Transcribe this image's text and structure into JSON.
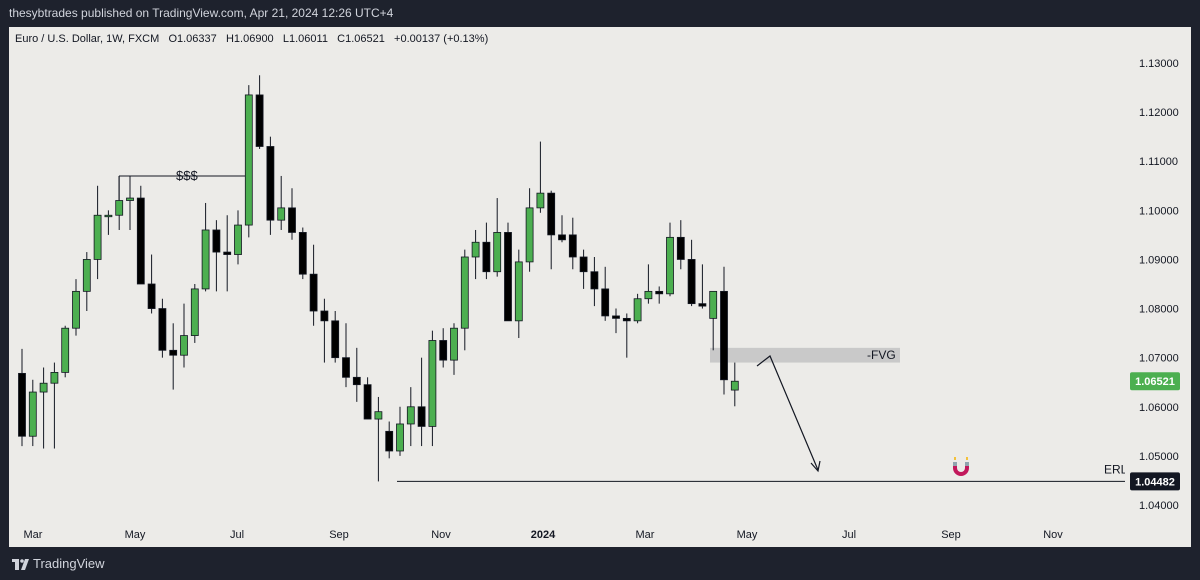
{
  "header": {
    "publisher_text": "thesybtrades published on TradingView.com, Apr 21, 2024 12:26 UTC+4"
  },
  "symbol_info": {
    "name": "Euro / U.S. Dollar, 1W, FXCM",
    "open": "O1.06337",
    "high": "H1.06900",
    "low": "L1.06011",
    "close": "C1.06521",
    "change": "+0.00137 (+0.13%)"
  },
  "footer": {
    "brand": "TradingView"
  },
  "colors": {
    "up": "#4caf50",
    "down": "#000000",
    "background": "#ecebe8",
    "frame": "#1e222d",
    "fvg": "#c9c9c9"
  },
  "chart_data": {
    "type": "candlestick",
    "title": "Euro / U.S. Dollar, 1W, FXCM",
    "ylim": [
      1.0375,
      1.1325
    ],
    "y_ticks": [
      "1.13000",
      "1.12000",
      "1.11000",
      "1.10000",
      "1.09000",
      "1.08000",
      "1.07000",
      "1.06000",
      "1.05000",
      "1.04000"
    ],
    "x_ticks": [
      {
        "label": "Mar",
        "week": 1
      },
      {
        "label": "May",
        "week": 9.5
      },
      {
        "label": "Jul",
        "week": 18
      },
      {
        "label": "Sep",
        "week": 26.5
      },
      {
        "label": "Nov",
        "week": 35
      },
      {
        "label": "2024",
        "week": 43.5
      },
      {
        "label": "Mar",
        "week": 52
      },
      {
        "label": "May",
        "week": 60.5
      },
      {
        "label": "Jul",
        "week": 69
      },
      {
        "label": "Sep",
        "week": 77.5
      },
      {
        "label": "Nov",
        "week": 86
      }
    ],
    "x_domain": [
      -1,
      92
    ],
    "candles": [
      {
        "o": 1.0668,
        "h": 1.0718,
        "l": 1.052,
        "c": 1.054
      },
      {
        "o": 1.054,
        "h": 1.0655,
        "l": 1.052,
        "c": 1.063
      },
      {
        "o": 1.063,
        "h": 1.068,
        "l": 1.0515,
        "c": 1.0648
      },
      {
        "o": 1.0648,
        "h": 1.069,
        "l": 1.0515,
        "c": 1.067
      },
      {
        "o": 1.067,
        "h": 1.0765,
        "l": 1.066,
        "c": 1.076
      },
      {
        "o": 1.076,
        "h": 1.086,
        "l": 1.0745,
        "c": 1.0835
      },
      {
        "o": 1.0835,
        "h": 1.0915,
        "l": 1.0795,
        "c": 1.09
      },
      {
        "o": 1.09,
        "h": 1.105,
        "l": 1.086,
        "c": 1.099
      },
      {
        "o": 1.099,
        "h": 1.1,
        "l": 1.095,
        "c": 1.099
      },
      {
        "o": 1.099,
        "h": 1.107,
        "l": 1.096,
        "c": 1.102
      },
      {
        "o": 1.102,
        "h": 1.107,
        "l": 1.096,
        "c": 1.1025
      },
      {
        "o": 1.1025,
        "h": 1.105,
        "l": 1.085,
        "c": 1.085
      },
      {
        "o": 1.085,
        "h": 1.091,
        "l": 1.079,
        "c": 1.08
      },
      {
        "o": 1.08,
        "h": 1.082,
        "l": 1.07,
        "c": 1.0715
      },
      {
        "o": 1.0715,
        "h": 1.077,
        "l": 1.0635,
        "c": 1.0705
      },
      {
        "o": 1.0705,
        "h": 1.081,
        "l": 1.068,
        "c": 1.0745
      },
      {
        "o": 1.0745,
        "h": 1.085,
        "l": 1.073,
        "c": 1.084
      },
      {
        "o": 1.084,
        "h": 1.1015,
        "l": 1.0835,
        "c": 1.096
      },
      {
        "o": 1.096,
        "h": 1.098,
        "l": 1.0835,
        "c": 1.0915
      },
      {
        "o": 1.0915,
        "h": 1.099,
        "l": 1.0835,
        "c": 1.091
      },
      {
        "o": 1.091,
        "h": 1.1,
        "l": 1.089,
        "c": 1.097
      },
      {
        "o": 1.097,
        "h": 1.1255,
        "l": 1.0945,
        "c": 1.1235
      },
      {
        "o": 1.1235,
        "h": 1.1275,
        "l": 1.1125,
        "c": 1.113
      },
      {
        "o": 1.113,
        "h": 1.115,
        "l": 1.095,
        "c": 1.098
      },
      {
        "o": 1.098,
        "h": 1.107,
        "l": 1.096,
        "c": 1.1005
      },
      {
        "o": 1.1005,
        "h": 1.1045,
        "l": 1.094,
        "c": 1.0955
      },
      {
        "o": 1.0955,
        "h": 1.0965,
        "l": 1.086,
        "c": 1.087
      },
      {
        "o": 1.087,
        "h": 1.093,
        "l": 1.0765,
        "c": 1.0795
      },
      {
        "o": 1.0795,
        "h": 1.082,
        "l": 1.069,
        "c": 1.0775
      },
      {
        "o": 1.0775,
        "h": 1.0795,
        "l": 1.069,
        "c": 1.07
      },
      {
        "o": 1.07,
        "h": 1.077,
        "l": 1.064,
        "c": 1.066
      },
      {
        "o": 1.066,
        "h": 1.072,
        "l": 1.061,
        "c": 1.0645
      },
      {
        "o": 1.0645,
        "h": 1.066,
        "l": 1.0575,
        "c": 1.0575
      },
      {
        "o": 1.0575,
        "h": 1.062,
        "l": 1.0448,
        "c": 1.059
      },
      {
        "o": 1.055,
        "h": 1.057,
        "l": 1.0495,
        "c": 1.051
      },
      {
        "o": 1.051,
        "h": 1.06,
        "l": 1.05,
        "c": 1.0565
      },
      {
        "o": 1.0565,
        "h": 1.064,
        "l": 1.052,
        "c": 1.06
      },
      {
        "o": 1.06,
        "h": 1.07,
        "l": 1.052,
        "c": 1.056
      },
      {
        "o": 1.056,
        "h": 1.0755,
        "l": 1.052,
        "c": 1.0735
      },
      {
        "o": 1.0735,
        "h": 1.076,
        "l": 1.068,
        "c": 1.0695
      },
      {
        "o": 1.0695,
        "h": 1.077,
        "l": 1.0665,
        "c": 1.076
      },
      {
        "o": 1.076,
        "h": 1.092,
        "l": 1.0715,
        "c": 1.0905
      },
      {
        "o": 1.0905,
        "h": 1.096,
        "l": 1.086,
        "c": 1.0935
      },
      {
        "o": 1.0935,
        "h": 1.0975,
        "l": 1.086,
        "c": 1.0875
      },
      {
        "o": 1.0875,
        "h": 1.1025,
        "l": 1.0865,
        "c": 1.0955
      },
      {
        "o": 1.0955,
        "h": 1.0975,
        "l": 1.0775,
        "c": 1.0775
      },
      {
        "o": 1.0775,
        "h": 1.092,
        "l": 1.074,
        "c": 1.0895
      },
      {
        "o": 1.0895,
        "h": 1.1045,
        "l": 1.0875,
        "c": 1.1005
      },
      {
        "o": 1.1005,
        "h": 1.114,
        "l": 1.0995,
        "c": 1.1035
      },
      {
        "o": 1.1035,
        "h": 1.104,
        "l": 1.088,
        "c": 1.095
      },
      {
        "o": 1.095,
        "h": 1.099,
        "l": 1.0935,
        "c": 1.094
      },
      {
        "o": 1.095,
        "h": 1.0985,
        "l": 1.088,
        "c": 1.0905
      },
      {
        "o": 1.0905,
        "h": 1.092,
        "l": 1.084,
        "c": 1.0875
      },
      {
        "o": 1.0875,
        "h": 1.0905,
        "l": 1.0805,
        "c": 1.084
      },
      {
        "o": 1.084,
        "h": 1.0885,
        "l": 1.0775,
        "c": 1.0785
      },
      {
        "o": 1.0785,
        "h": 1.08,
        "l": 1.075,
        "c": 1.078
      },
      {
        "o": 1.078,
        "h": 1.079,
        "l": 1.07,
        "c": 1.0775
      },
      {
        "o": 1.0775,
        "h": 1.083,
        "l": 1.077,
        "c": 1.082
      },
      {
        "o": 1.082,
        "h": 1.089,
        "l": 1.081,
        "c": 1.0835
      },
      {
        "o": 1.0835,
        "h": 1.0845,
        "l": 1.081,
        "c": 1.083
      },
      {
        "o": 1.083,
        "h": 1.0975,
        "l": 1.0825,
        "c": 1.0945
      },
      {
        "o": 1.0945,
        "h": 1.098,
        "l": 1.088,
        "c": 1.09
      },
      {
        "o": 1.09,
        "h": 1.094,
        "l": 1.0805,
        "c": 1.081
      },
      {
        "o": 1.081,
        "h": 1.089,
        "l": 1.08,
        "c": 1.0805
      },
      {
        "o": 1.078,
        "h": 1.0835,
        "l": 1.0715,
        "c": 1.0835
      },
      {
        "o": 1.0835,
        "h": 1.0885,
        "l": 1.0625,
        "c": 1.0655
      },
      {
        "o": 1.0634,
        "h": 1.069,
        "l": 1.0601,
        "c": 1.0652
      }
    ],
    "annotations": {
      "liquidity_label": "$$$",
      "fvg_label": "-FVG",
      "fvg_zone": [
        1.069,
        1.072
      ],
      "erl_label": "ERL",
      "erl_level": 1.04482,
      "erl_value_label": "1.04482",
      "last_price_label": "1.06521",
      "last_price": 1.06521
    }
  }
}
